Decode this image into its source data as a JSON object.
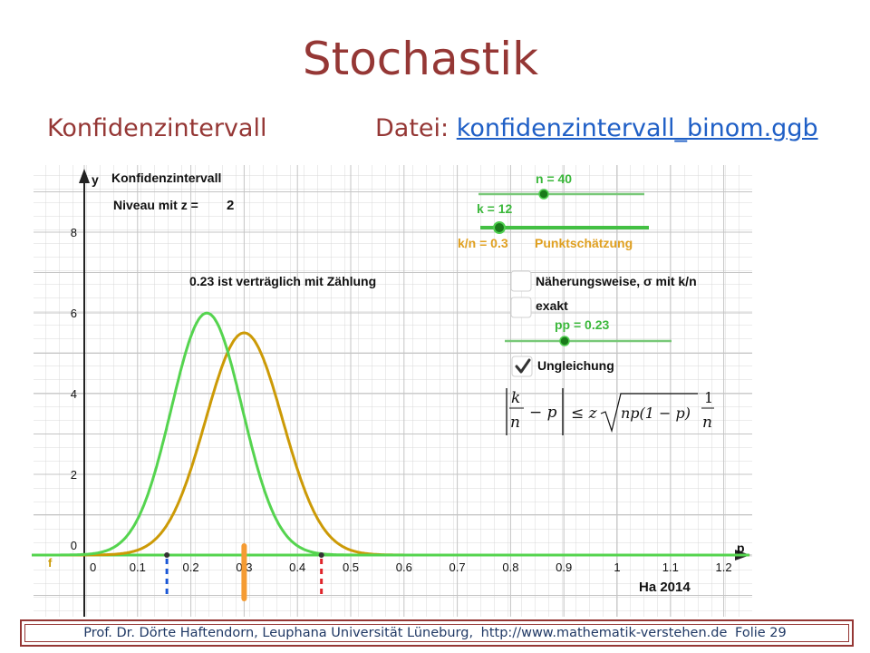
{
  "slide": {
    "title": "Stochastik",
    "subtitle_left": "Konfidenzintervall",
    "file_label": "Datei:",
    "file_link": "konfidenzintervall_binom.ggb"
  },
  "graph": {
    "y_axis_label": "y",
    "x_axis_label": "p",
    "function_label": "f",
    "heading": "Konfidenzintervall",
    "niveau_label": "Niveau mit z =",
    "niveau_value": "2",
    "compat_text": "0.23 ist verträglich mit Zählung",
    "slider_n": {
      "label": "n = 40",
      "value": 40
    },
    "slider_k": {
      "label": "k = 12",
      "value": 12
    },
    "kn_label": "k/n = 0.3",
    "punkt_label": "Punktschätzung",
    "checkbox_approx": {
      "label": "Näherungsweise, σ mit k/n",
      "checked": false
    },
    "checkbox_exact": {
      "label": "exakt",
      "checked": false
    },
    "slider_pp": {
      "label": "pp = 0.23",
      "value": 0.23
    },
    "checkbox_ineq": {
      "label": "Ungleichung",
      "checked": true
    },
    "formula_k": "k",
    "formula_n": "n",
    "formula_mid": "− p",
    "formula_rhs": "≤ z",
    "formula_root": "np(1 − p)",
    "formula_one": "1",
    "formula_den": "n",
    "credit": "Ha 2014",
    "x_ticks": [
      "0",
      "0.1",
      "0.2",
      "0.3",
      "0.4",
      "0.5",
      "0.6",
      "0.7",
      "0.8",
      "0.9",
      "1",
      "1.1",
      "1.2"
    ],
    "y_ticks": [
      "0",
      "2",
      "4",
      "6",
      "8"
    ],
    "colors": {
      "green": "#55d44f",
      "orange": "#cc9a06",
      "blue": "#1a56d6",
      "red": "#e0252b",
      "slider_green": "#1a8a1a",
      "kn_orange": "#e0a020"
    },
    "interval": {
      "lower": 0.155,
      "upper": 0.445,
      "estimate": 0.3
    }
  },
  "footer": {
    "author": "Prof. Dr. Dörte Haftendorn, Leuphana Universität Lüneburg,",
    "url": "http://www.mathematik-verstehen.de",
    "slide_number": "Folie 29"
  }
}
